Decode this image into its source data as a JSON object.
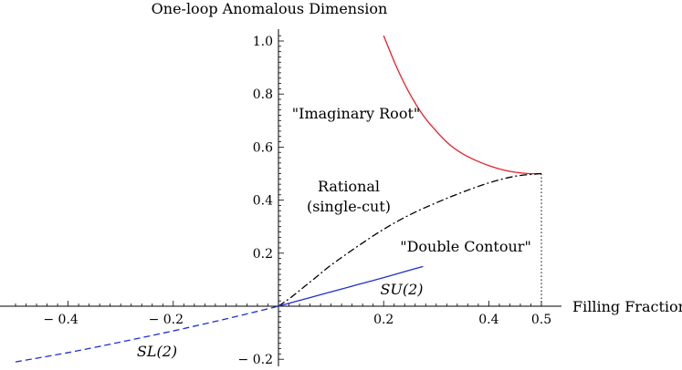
{
  "chart_data": {
    "type": "line",
    "title": "One-loop Anomalous Dimension",
    "xlabel": "Filling Fraction",
    "ylabel": "",
    "xlim": [
      -0.5,
      0.5
    ],
    "ylim": [
      -0.2,
      1.05
    ],
    "x_ticks": [
      -0.4,
      -0.2,
      0.2,
      0.4,
      0.5
    ],
    "x_tick_labels": [
      "− 0.4",
      "− 0.2",
      "0.2",
      "0.4",
      "0.5"
    ],
    "y_ticks": [
      -0.2,
      0.2,
      0.4,
      0.6,
      0.8,
      1.0
    ],
    "y_tick_labels": [
      "− 0.2",
      "0.2",
      "0.4",
      "0.6",
      "0.8",
      "1.0"
    ],
    "grid": false,
    "series": [
      {
        "key": "imaginary",
        "color": "#e8202a",
        "dash": "solid",
        "x": [
          0.2,
          0.225,
          0.25,
          0.275,
          0.3,
          0.325,
          0.35,
          0.375,
          0.4,
          0.425,
          0.45,
          0.475,
          0.5
        ],
        "y": [
          1.02,
          0.9,
          0.8,
          0.72,
          0.66,
          0.61,
          0.575,
          0.55,
          0.53,
          0.515,
          0.505,
          0.5,
          0.5
        ]
      },
      {
        "key": "rational",
        "color": "#000000",
        "dash": "dashdot",
        "x": [
          0.0,
          0.025,
          0.05,
          0.075,
          0.1,
          0.15,
          0.2,
          0.25,
          0.3,
          0.35,
          0.4,
          0.45,
          0.5
        ],
        "y": [
          0.0,
          0.035,
          0.075,
          0.115,
          0.155,
          0.225,
          0.29,
          0.345,
          0.39,
          0.43,
          0.465,
          0.49,
          0.5
        ]
      },
      {
        "key": "su2",
        "color": "#1c2fd8",
        "dash": "solid",
        "x": [
          0.0,
          0.05,
          0.1,
          0.15,
          0.2,
          0.25,
          0.275
        ],
        "y": [
          0.0,
          0.027,
          0.054,
          0.081,
          0.108,
          0.136,
          0.15
        ]
      },
      {
        "key": "sl2",
        "color": "#1c2fd8",
        "dash": "dashed",
        "x": [
          -0.5,
          -0.4,
          -0.3,
          -0.2,
          -0.1,
          0.0
        ],
        "y": [
          -0.21,
          -0.175,
          -0.135,
          -0.093,
          -0.048,
          0.0
        ]
      }
    ],
    "vertical_marker": {
      "x": 0.5,
      "y_from": 0.0,
      "y_to": 0.5,
      "style": "dotted"
    },
    "annotations": [
      {
        "key": "imag",
        "text": "\"Imaginary Root\""
      },
      {
        "key": "rational1",
        "text": "Rational"
      },
      {
        "key": "rational2",
        "text": "(single-cut)"
      },
      {
        "key": "double",
        "text": "\"Double Contour\""
      },
      {
        "key": "su2",
        "text": "SU(2)"
      },
      {
        "key": "sl2",
        "text": "SL(2)"
      }
    ]
  }
}
